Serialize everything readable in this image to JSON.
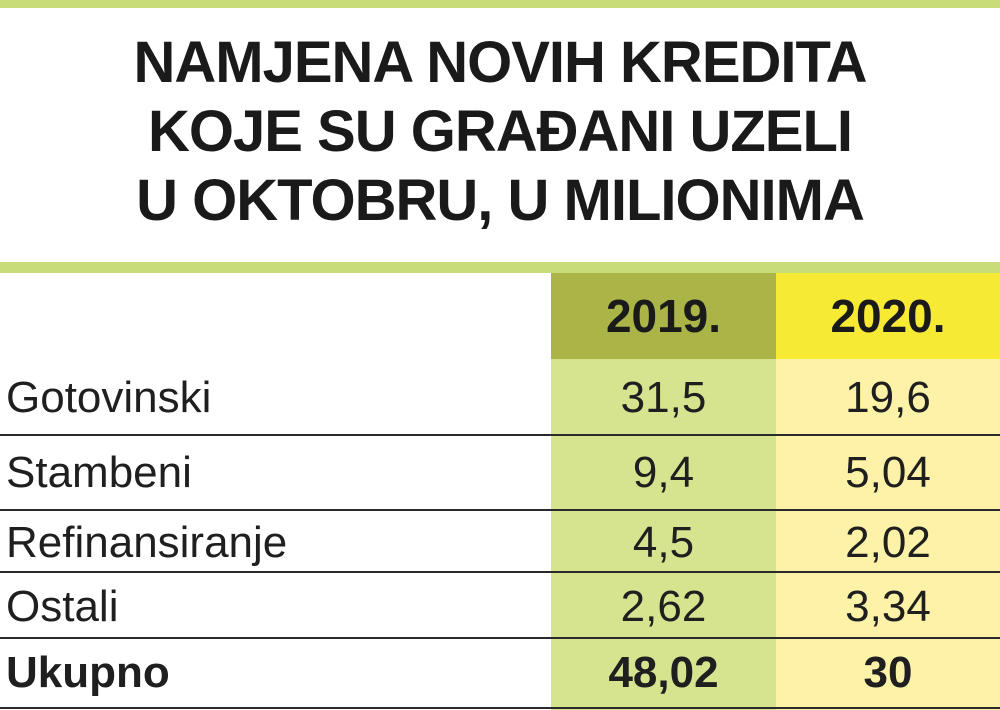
{
  "title_lines": [
    "NAMJENA NOVIH KREDITA",
    "KOJE SU GRAĐANI UZELI",
    "U OKTOBRU, U MILIONIMA"
  ],
  "colors": {
    "accent_bar": "#c8dc7a",
    "header_2019": "#aab447",
    "header_2020": "#f7ea34",
    "column_2019": "#d6e48f",
    "column_2020": "#fdf2a8"
  },
  "chart_data": {
    "type": "table",
    "title": "NAMJENA NOVIH KREDITA KOJE SU GRAĐANI UZELI U OKTOBRU, U MILIONIMA",
    "columns": [
      "2019.",
      "2020."
    ],
    "rows": [
      {
        "label": "Gotovinski",
        "values": [
          "31,5",
          "19,6"
        ]
      },
      {
        "label": "Stambeni",
        "values": [
          "9,4",
          "5,04"
        ]
      },
      {
        "label": "Refinansiranje",
        "values": [
          "4,5",
          "2,02"
        ]
      },
      {
        "label": "Ostali",
        "values": [
          "2,62",
          "3,34"
        ]
      },
      {
        "label": "Ukupno",
        "values": [
          "48,02",
          "30"
        ]
      }
    ]
  }
}
